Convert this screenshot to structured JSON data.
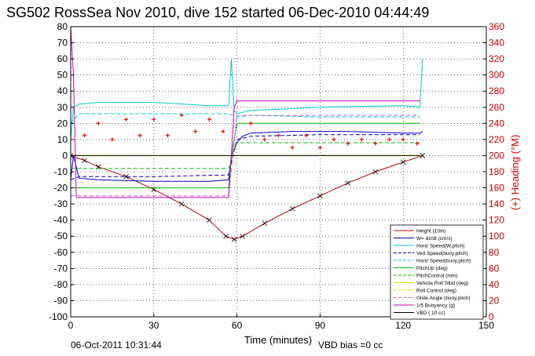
{
  "chart_data": {
    "type": "line",
    "title": "SG502 RossSea Nov 2010, dive 152 started 06-Dec-2010 04:44:49",
    "xlabel": "Time (minutes)",
    "ylabel": "",
    "y2label": "(+) Heading (°M)",
    "xlim": [
      0,
      150
    ],
    "ylim": [
      -100,
      80
    ],
    "y2lim": [
      0,
      360
    ],
    "xticks": [
      "0",
      "30",
      "60",
      "90",
      "120",
      "150"
    ],
    "yticks": [
      "80",
      "70",
      "60",
      "50",
      "40",
      "30",
      "20",
      "10",
      "0",
      "-10",
      "-20",
      "-30",
      "-40",
      "-50",
      "-60",
      "-70",
      "-80",
      "-90",
      "-100"
    ],
    "y2ticks": [
      "360",
      "340",
      "320",
      "300",
      "280",
      "260",
      "240",
      "220",
      "200",
      "180",
      "160",
      "140",
      "120",
      "100",
      "80",
      "60",
      "40",
      "20",
      "0"
    ],
    "grid": true,
    "legend_position": "bottom-right",
    "footer_left": "06-Oct-2011 10:31:44",
    "footer_right": "VBD bias =0 cc",
    "series": [
      {
        "name": "Height (10m)",
        "color": "#c00000",
        "style": "solid",
        "markers": "x",
        "x": [
          0,
          5,
          10,
          20,
          30,
          40,
          50,
          56,
          59,
          62,
          70,
          80,
          90,
          100,
          110,
          120,
          127
        ],
        "y": [
          0,
          -3,
          -7,
          -13,
          -21,
          -30,
          -40,
          -50,
          -52,
          -50,
          -42,
          -33,
          -25,
          -17,
          -10,
          -4,
          0
        ]
      },
      {
        "name": "W= dz/dt (cm/s)",
        "color": "#0000cc",
        "style": "solid",
        "x": [
          0,
          1,
          3,
          10,
          30,
          50,
          57,
          58,
          60,
          62,
          65,
          80,
          100,
          120,
          126,
          127
        ],
        "y": [
          -15,
          0,
          -14,
          -15,
          -16,
          -16,
          -15,
          0,
          8,
          12,
          14,
          15,
          15,
          14,
          14,
          15
        ]
      },
      {
        "name": "Horiz Speed(W,pitch)",
        "color": "#00cccc",
        "style": "solid",
        "x": [
          0,
          1,
          3,
          10,
          30,
          50,
          57,
          58,
          59,
          60,
          65,
          90,
          120,
          126,
          127
        ],
        "y": [
          10,
          30,
          32,
          33,
          33,
          31,
          31,
          60,
          28,
          26,
          28,
          30,
          31,
          30,
          60
        ]
      },
      {
        "name": "Vert Speed(buoy,pitch)",
        "color": "#0000cc",
        "style": "dashed",
        "x": [
          0,
          3,
          30,
          57,
          60,
          65,
          90,
          126
        ],
        "y": [
          -15,
          -13,
          -13,
          -12,
          10,
          12,
          13,
          13
        ]
      },
      {
        "name": "Horiz Speed(buoy,pitch)",
        "color": "#00cccc",
        "style": "dashed",
        "x": [
          0,
          3,
          30,
          57,
          60,
          65,
          90,
          126
        ],
        "y": [
          20,
          26,
          26,
          26,
          24,
          25,
          24,
          24
        ]
      },
      {
        "name": "PitchUp (deg)",
        "color": "#00bb00",
        "style": "solid",
        "x": [
          0,
          3,
          30,
          57,
          58,
          60,
          90,
          126
        ],
        "y": [
          -20,
          -20,
          -20,
          -20,
          0,
          20,
          20,
          20
        ]
      },
      {
        "name": "PitchControl (mm)",
        "color": "#00bb00",
        "style": "dashed",
        "x": [
          0,
          3,
          30,
          57,
          60,
          90,
          126
        ],
        "y": [
          -8,
          -8,
          -8,
          -8,
          8,
          8,
          8
        ]
      },
      {
        "name": "Vehicle Roll Stbd (deg)",
        "color": "#dddd00",
        "style": "solid",
        "x": [
          0,
          3,
          30,
          57,
          60,
          90,
          126
        ],
        "y": [
          0,
          0,
          0,
          0,
          0,
          0,
          0
        ]
      },
      {
        "name": "Roll Control (deg)",
        "color": "#dddd00",
        "style": "dashed",
        "x": [
          0,
          3,
          30,
          57,
          60,
          90,
          126
        ],
        "y": [
          0,
          0,
          0,
          0,
          0,
          0,
          0
        ]
      },
      {
        "name": "Glide Angle (buoy,pitch)",
        "color": "#cc66cc",
        "style": "dashed",
        "x": [
          0,
          3,
          30,
          57,
          60,
          90,
          126
        ],
        "y": [
          -25,
          -25,
          -25,
          -25,
          25,
          25,
          25
        ]
      },
      {
        "name": "1/5 Buoyancy (g)",
        "color": "#cc00cc",
        "style": "solid",
        "x": [
          0,
          1,
          2,
          3,
          30,
          57,
          58,
          59,
          60,
          126
        ],
        "y": [
          80,
          50,
          -26,
          -26,
          -26,
          -26,
          0,
          30,
          34,
          34
        ]
      },
      {
        "name": "VBD ( 10 cc)",
        "color": "#000000",
        "style": "solid",
        "x": [
          0,
          126
        ],
        "y": [
          0,
          0
        ]
      },
      {
        "name": "(+) Heading (°M)",
        "color": "#ee0000",
        "style": "markers",
        "axis": "right",
        "x": [
          5,
          10,
          15,
          20,
          25,
          30,
          35,
          40,
          45,
          50,
          55,
          65,
          70,
          75,
          80,
          85,
          90,
          95,
          100,
          105,
          110,
          115,
          120,
          125
        ],
        "y": [
          225,
          240,
          220,
          245,
          225,
          245,
          225,
          250,
          230,
          245,
          230,
          240,
          220,
          225,
          210,
          225,
          210,
          220,
          215,
          220,
          215,
          220,
          220,
          215
        ]
      }
    ]
  }
}
